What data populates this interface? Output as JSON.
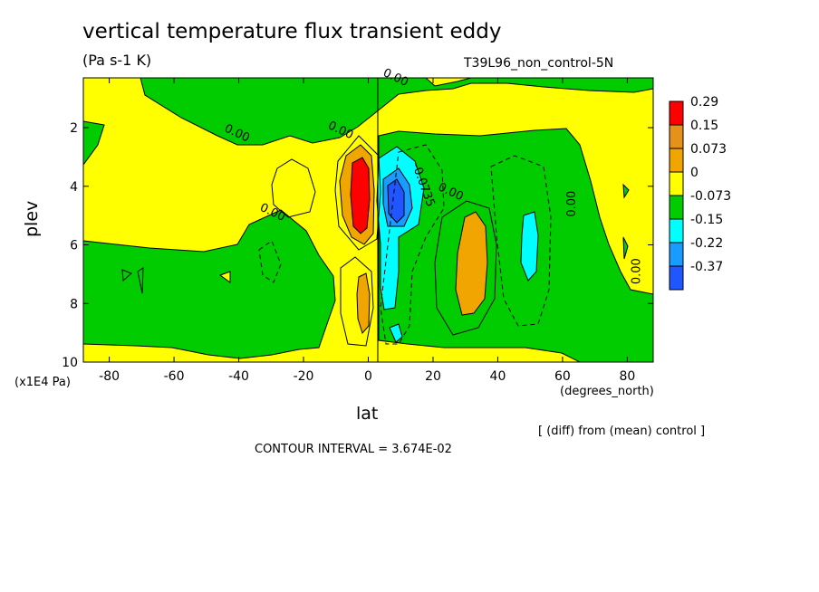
{
  "chart_data": {
    "type": "heatmap",
    "title": "vertical temperature flux transient eddy",
    "units": "(Pa s-1 K)",
    "run_name": "T39L96_non_control-5N",
    "xlabel": "lat",
    "xunit": "(degrees_north)",
    "ylabel": "plev",
    "yunit": "(x1E4 Pa)",
    "xlim": [
      -88,
      88
    ],
    "ylim": [
      0.3,
      10
    ],
    "y_inverted": true,
    "x_ticks": [
      -80,
      -60,
      -40,
      -20,
      0,
      20,
      40,
      60,
      80
    ],
    "x_tick_labels": [
      "-80",
      "-60",
      "-40",
      "-20",
      "0",
      "20",
      "40",
      "60",
      "80"
    ],
    "y_ticks": [
      2,
      4,
      6,
      8,
      10
    ],
    "y_tick_labels": [
      "2",
      "4",
      "6",
      "8",
      "10"
    ],
    "note": "[ (diff) from (mean) control ]",
    "contour_interval": "CONTOUR INTERVAL = 3.674E-02",
    "contour_labels": [
      {
        "text": "0.00",
        "x": 8,
        "y": 0.4
      },
      {
        "text": "0.00",
        "x": -41,
        "y": 2.3
      },
      {
        "text": "0.00",
        "x": -9,
        "y": 2.2
      },
      {
        "text": "0.00",
        "x": -30,
        "y": 5.0
      },
      {
        "text": "-0.0735",
        "x": 16,
        "y": 4.0
      },
      {
        "text": "0.00",
        "x": 25,
        "y": 4.3
      },
      {
        "text": "0.00",
        "x": 64,
        "y": 4.6
      },
      {
        "text": "0.00",
        "x": 84,
        "y": 6.9
      }
    ],
    "colorbar": {
      "colors": [
        "#ff0000",
        "#e69119",
        "#f0a500",
        "#ffff00",
        "#00cc00",
        "#00ffff",
        "#199bff",
        "#1f56ff"
      ],
      "labels": [
        "0.29",
        "0.15",
        "0.073",
        "0",
        "-0.073",
        "-0.15",
        "-0.22",
        "-0.37"
      ]
    },
    "features": [
      {
        "sign": "positive",
        "lat_center": -3,
        "plev_center": 4.0,
        "peak": 0.29
      },
      {
        "sign": "negative",
        "lat_center": 9,
        "plev_center": 4.0,
        "peak": -0.37
      },
      {
        "sign": "positive",
        "lat_center": 32,
        "plev_center": 6.5,
        "peak": 0.15
      },
      {
        "sign": "negative",
        "lat_center": 49,
        "plev_center": 6.3,
        "peak": -0.15
      },
      {
        "sign": "positive",
        "lat_center": -1,
        "plev_center": 8.0,
        "peak": 0.15
      }
    ]
  }
}
